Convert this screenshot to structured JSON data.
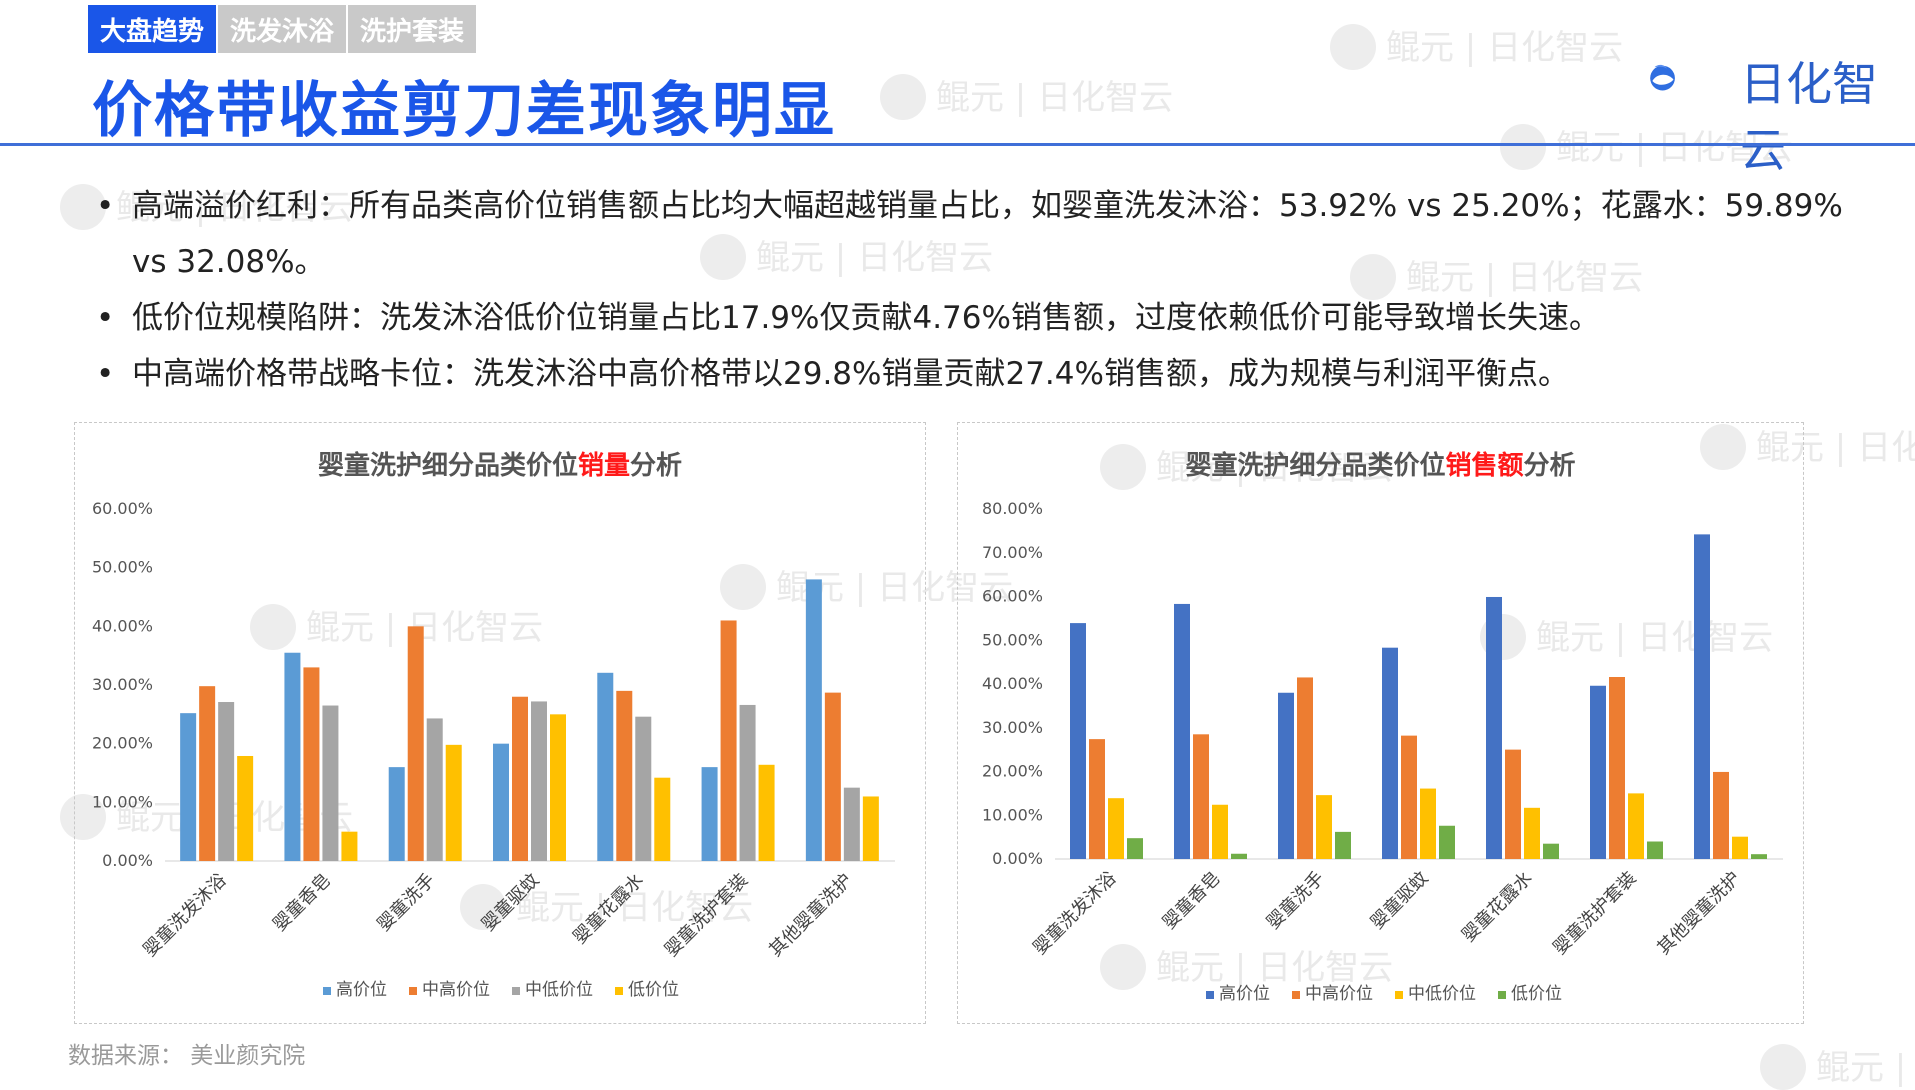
{
  "tabs": [
    {
      "label": "大盘趋势",
      "active": true
    },
    {
      "label": "洗发沐浴",
      "active": false
    },
    {
      "label": "洗护套装",
      "active": false
    }
  ],
  "title": "价格带收益剪刀差现象明显",
  "logo": {
    "text": "日化智云",
    "icon": "whale-icon"
  },
  "watermark": {
    "a": "鲲元",
    "b": "日化智云"
  },
  "bullets": [
    "高端溢价红利：所有品类高价位销售额占比均大幅超越销量占比，如婴童洗发沐浴：53.92% vs 25.20%；花露水：59.89% vs 32.08%。",
    "低价位规模陷阱：洗发沐浴低价位销量占比17.9%仅贡献4.76%销售额，过度依赖低价可能导致增长失速。",
    "中高端价格带战略卡位：洗发沐浴中高价格带以29.8%销量贡献27.4%销售额，成为规模与利润平衡点。"
  ],
  "source": "数据来源： 美业颜究院",
  "colors": {
    "accent": "#1a56e8",
    "highlight": "#ff1a1a"
  },
  "chart_data": [
    {
      "type": "bar",
      "title_prefix": "婴童洗护细分品类价位",
      "title_highlight": "销量",
      "title_suffix": "分析",
      "categories": [
        "婴童洗发沐浴",
        "婴童香皂",
        "婴童洗手",
        "婴童驱蚊",
        "婴童花露水",
        "婴童洗护套装",
        "其他婴童洗护"
      ],
      "ylim": [
        0,
        60
      ],
      "yticks": [
        "0.00%",
        "10.00%",
        "20.00%",
        "30.00%",
        "40.00%",
        "50.00%",
        "60.00%"
      ],
      "grid": false,
      "legend_position": "bottom",
      "series": [
        {
          "name": "高价位",
          "color": "#5b9bd5",
          "values": [
            25.2,
            35.5,
            16.0,
            20.0,
            32.08,
            16.0,
            48.0
          ]
        },
        {
          "name": "中高价位",
          "color": "#ed7d31",
          "values": [
            29.8,
            33.0,
            40.0,
            28.0,
            29.0,
            41.0,
            28.7
          ]
        },
        {
          "name": "中低价位",
          "color": "#a5a5a5",
          "values": [
            27.1,
            26.5,
            24.3,
            27.2,
            24.6,
            26.6,
            12.5
          ]
        },
        {
          "name": "低价位",
          "color": "#ffc000",
          "values": [
            17.9,
            5.0,
            19.8,
            25.0,
            14.2,
            16.4,
            11.0
          ]
        }
      ]
    },
    {
      "type": "bar",
      "title_prefix": "婴童洗护细分品类价位",
      "title_highlight": "销售额",
      "title_suffix": "分析",
      "categories": [
        "婴童洗发沐浴",
        "婴童香皂",
        "婴童洗手",
        "婴童驱蚊",
        "婴童花露水",
        "婴童洗护套装",
        "其他婴童洗护"
      ],
      "ylim": [
        0,
        80
      ],
      "yticks": [
        "0.00%",
        "10.00%",
        "20.00%",
        "30.00%",
        "40.00%",
        "50.00%",
        "60.00%",
        "70.00%",
        "80.00%"
      ],
      "grid": false,
      "legend_position": "bottom",
      "series": [
        {
          "name": "高价位",
          "color": "#4472c4",
          "values": [
            53.92,
            58.3,
            38.0,
            48.3,
            59.89,
            39.6,
            74.2
          ]
        },
        {
          "name": "中高价位",
          "color": "#ed7d31",
          "values": [
            27.4,
            28.5,
            41.5,
            28.2,
            25.0,
            41.6,
            19.9
          ]
        },
        {
          "name": "中低价位",
          "color": "#ffc000",
          "values": [
            13.9,
            12.4,
            14.6,
            16.1,
            11.7,
            15.0,
            5.1
          ]
        },
        {
          "name": "低价位",
          "color": "#70ad47",
          "values": [
            4.76,
            1.2,
            6.2,
            7.6,
            3.5,
            4.0,
            1.1
          ]
        }
      ]
    }
  ]
}
